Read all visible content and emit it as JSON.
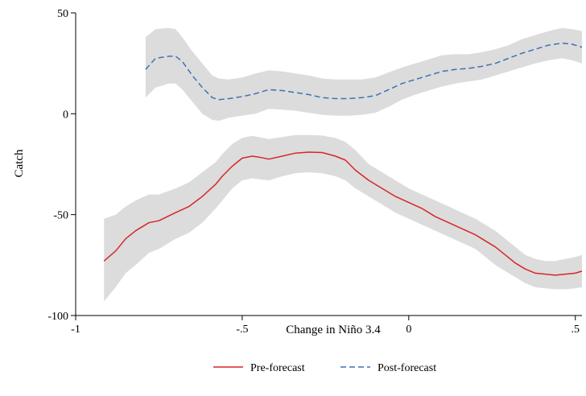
{
  "chart_data": {
    "type": "line",
    "title": "",
    "xlabel": "Change in Niño 3.4",
    "ylabel": "Catch",
    "xlim": [
      -1,
      0.52
    ],
    "ylim": [
      -100,
      50
    ],
    "xticks": [
      -1,
      -0.5,
      0,
      0.5
    ],
    "xtick_labels": [
      "-1",
      "-.5",
      "0",
      ".5"
    ],
    "yticks": [
      -100,
      -50,
      0,
      50
    ],
    "ytick_labels": [
      "-100",
      "-50",
      "0",
      "50"
    ],
    "grid": false,
    "legend_position": "bottom",
    "band_color": "#dcdcdc",
    "series": [
      {
        "name": "Pre-forecast",
        "color": "#d62728",
        "dash": "solid",
        "x": [
          -0.915,
          -0.88,
          -0.85,
          -0.82,
          -0.78,
          -0.75,
          -0.7,
          -0.66,
          -0.62,
          -0.58,
          -0.56,
          -0.53,
          -0.5,
          -0.47,
          -0.45,
          -0.42,
          -0.38,
          -0.34,
          -0.3,
          -0.26,
          -0.22,
          -0.19,
          -0.16,
          -0.12,
          -0.08,
          -0.04,
          0.0,
          0.04,
          0.08,
          0.12,
          0.16,
          0.2,
          0.23,
          0.26,
          0.29,
          0.32,
          0.35,
          0.38,
          0.41,
          0.44,
          0.47,
          0.5,
          0.52
        ],
        "y": [
          -73,
          -68,
          -62,
          -58,
          -54,
          -53,
          -49,
          -46,
          -41,
          -35,
          -31,
          -26,
          -22,
          -21,
          -21.5,
          -22.5,
          -21,
          -19.5,
          -19,
          -19.2,
          -21,
          -23,
          -28,
          -33,
          -37,
          -41,
          -44,
          -47,
          -51,
          -54,
          -57,
          -60,
          -63,
          -66,
          -70,
          -74,
          -77,
          -79,
          -79.5,
          -80,
          -79.5,
          -79,
          -78
        ],
        "lower": [
          -93,
          -86,
          -79,
          -75,
          -69,
          -67,
          -62,
          -59,
          -54,
          -47,
          -43,
          -37,
          -33,
          -32,
          -32.5,
          -33,
          -31,
          -29.5,
          -29,
          -29.5,
          -31,
          -33,
          -37,
          -41,
          -45,
          -49,
          -52,
          -55,
          -58,
          -61,
          -64,
          -67,
          -71,
          -75,
          -78,
          -81,
          -84,
          -86,
          -86.5,
          -87,
          -87,
          -86.5,
          -86
        ],
        "upper": [
          -52,
          -50,
          -46,
          -43,
          -40,
          -40,
          -37,
          -34,
          -29,
          -24,
          -20,
          -15,
          -12,
          -11,
          -11.5,
          -12.5,
          -11.5,
          -10.5,
          -10.5,
          -10.8,
          -12,
          -14,
          -18,
          -25,
          -29,
          -33,
          -37,
          -40,
          -43,
          -46,
          -49,
          -52,
          -55,
          -58,
          -62,
          -66,
          -70,
          -72,
          -73,
          -73,
          -72,
          -71,
          -70
        ]
      },
      {
        "name": "Post-forecast",
        "color": "#3c72b6",
        "dash": "dashed",
        "x": [
          -0.79,
          -0.76,
          -0.72,
          -0.7,
          -0.68,
          -0.65,
          -0.62,
          -0.59,
          -0.57,
          -0.54,
          -0.5,
          -0.46,
          -0.42,
          -0.38,
          -0.34,
          -0.3,
          -0.26,
          -0.22,
          -0.18,
          -0.14,
          -0.1,
          -0.06,
          -0.02,
          0.02,
          0.06,
          0.1,
          0.14,
          0.18,
          0.22,
          0.26,
          0.3,
          0.34,
          0.38,
          0.42,
          0.46,
          0.49,
          0.52
        ],
        "y": [
          22,
          27.5,
          28.5,
          28.5,
          26,
          19,
          13,
          8,
          7,
          7.5,
          8.5,
          10,
          12,
          11.5,
          10.5,
          9.5,
          8,
          7.5,
          7.5,
          8,
          9,
          12,
          15,
          17,
          19,
          21,
          22,
          22.5,
          23.5,
          25,
          27.5,
          30,
          32,
          34,
          35,
          34.5,
          33
        ],
        "lower": [
          8,
          13,
          15,
          15,
          12,
          6,
          0,
          -3,
          -3.5,
          -2,
          -1,
          0,
          2.5,
          2,
          1.5,
          0.5,
          -0.5,
          -1,
          -1,
          -0.5,
          0.5,
          3.5,
          7,
          9.5,
          11.5,
          13.5,
          15,
          16,
          17,
          19,
          21,
          23,
          25,
          26.5,
          27.5,
          26.5,
          25
        ],
        "upper": [
          38,
          42,
          42.5,
          42,
          38,
          31,
          25,
          19,
          17.5,
          17,
          18,
          20,
          21.5,
          21,
          20,
          19,
          17.5,
          17,
          17,
          17,
          18,
          20.5,
          23,
          25,
          27,
          29,
          29.5,
          29.5,
          30.5,
          32,
          34,
          37,
          39,
          41,
          42.5,
          42,
          41
        ]
      }
    ]
  }
}
